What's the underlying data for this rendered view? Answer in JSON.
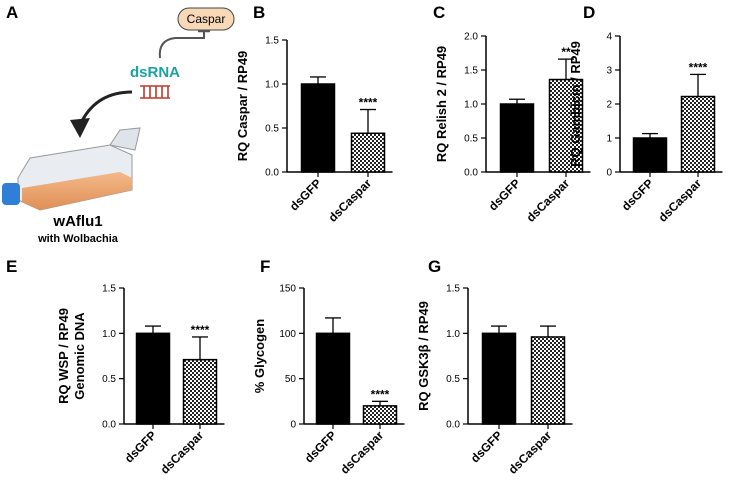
{
  "diagram": {
    "panel": "A",
    "target": "Caspar",
    "agent": "dsRNA",
    "cell_line": "wAflu1",
    "infection": "with Wolbachia"
  },
  "chart_data": [
    {
      "panel": "B",
      "type": "bar",
      "ylabel": "RQ Caspar / RP49",
      "categories": [
        "dsGFP",
        "dsCaspar"
      ],
      "values": [
        1.0,
        0.44
      ],
      "errors": [
        0.08,
        0.27
      ],
      "annotations": [
        null,
        "****"
      ],
      "color": "#000000",
      "patterns": [
        "solid",
        "checker"
      ],
      "ylim": [
        0,
        1.5
      ],
      "yticks": [
        {
          "value": 0,
          "label": "0.0"
        },
        0.5,
        {
          "value": 1,
          "label": "1.0"
        },
        1.5
      ]
    },
    {
      "panel": "C",
      "type": "bar",
      "ylabel": "RQ Relish 2 / RP49",
      "categories": [
        "dsGFP",
        "dsCaspar"
      ],
      "values": [
        1.0,
        1.36
      ],
      "errors": [
        0.07,
        0.3
      ],
      "annotations": [
        null,
        "**"
      ],
      "color": "#000000",
      "patterns": [
        "solid",
        "checker"
      ],
      "ylim": [
        0,
        2
      ],
      "yticks": [
        {
          "value": 0,
          "label": "0.0"
        },
        0.5,
        {
          "value": 1,
          "label": "1.0"
        },
        1.5,
        {
          "value": 2,
          "label": "2.0"
        }
      ]
    },
    {
      "panel": "D",
      "type": "bar",
      "ylabel": "RQ Gambicin / RP49",
      "categories": [
        "dsGFP",
        "dsCaspar"
      ],
      "values": [
        1.0,
        2.22
      ],
      "errors": [
        0.13,
        0.65
      ],
      "annotations": [
        null,
        "****"
      ],
      "color": "#000000",
      "patterns": [
        "solid",
        "checker"
      ],
      "ylim": [
        0,
        4
      ],
      "yticks": [
        0,
        1,
        2,
        3,
        4
      ]
    },
    {
      "panel": "E",
      "type": "bar",
      "ylabel": [
        "RQ WSP / RP49",
        "Genomic DNA"
      ],
      "categories": [
        "dsGFP",
        "dsCaspar"
      ],
      "values": [
        1.0,
        0.71
      ],
      "errors": [
        0.08,
        0.25
      ],
      "annotations": [
        null,
        "****"
      ],
      "color": "#000000",
      "patterns": [
        "solid",
        "checker"
      ],
      "ylim": [
        0,
        1.5
      ],
      "yticks": [
        {
          "value": 0,
          "label": "0.0"
        },
        0.5,
        {
          "value": 1,
          "label": "1.0"
        },
        1.5
      ]
    },
    {
      "panel": "F",
      "type": "bar",
      "ylabel": "% Glycogen",
      "categories": [
        "dsGFP",
        "dsCaspar"
      ],
      "values": [
        100,
        20
      ],
      "errors": [
        17,
        5
      ],
      "annotations": [
        null,
        "****"
      ],
      "color": "#000000",
      "patterns": [
        "solid",
        "checker"
      ],
      "ylim": [
        0,
        150
      ],
      "yticks": [
        0,
        50,
        100,
        150
      ]
    },
    {
      "panel": "G",
      "type": "bar",
      "ylabel": "RQ GSK3β / RP49",
      "categories": [
        "dsGFP",
        "dsCaspar"
      ],
      "values": [
        1.0,
        0.96
      ],
      "errors": [
        0.08,
        0.12
      ],
      "annotations": [
        null,
        null
      ],
      "color": "#000000",
      "patterns": [
        "solid",
        "checker"
      ],
      "ylim": [
        0,
        1.5
      ],
      "yticks": [
        {
          "value": 0,
          "label": "0.0"
        },
        0.5,
        {
          "value": 1,
          "label": "1.0"
        },
        1.5
      ]
    }
  ]
}
